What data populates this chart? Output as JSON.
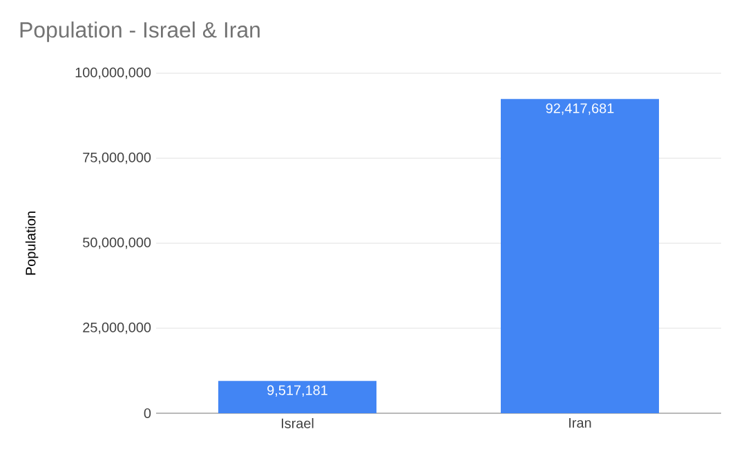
{
  "chart_data": {
    "type": "bar",
    "title": "Population - Israel & Iran",
    "ylabel": "Population",
    "categories": [
      "Israel",
      "Iran"
    ],
    "values": [
      9517181,
      92417681
    ],
    "value_labels": [
      "9,517,181",
      "92,417,681"
    ],
    "color": "#4285f4",
    "ylim": [
      0,
      100000000
    ],
    "yticks": [
      {
        "value": 0,
        "label": "0"
      },
      {
        "value": 25000000,
        "label": "25,000,000"
      },
      {
        "value": 50000000,
        "label": "50,000,000"
      },
      {
        "value": 75000000,
        "label": "75,000,000"
      },
      {
        "value": 100000000,
        "label": "100,000,000"
      }
    ],
    "grid": "y"
  }
}
